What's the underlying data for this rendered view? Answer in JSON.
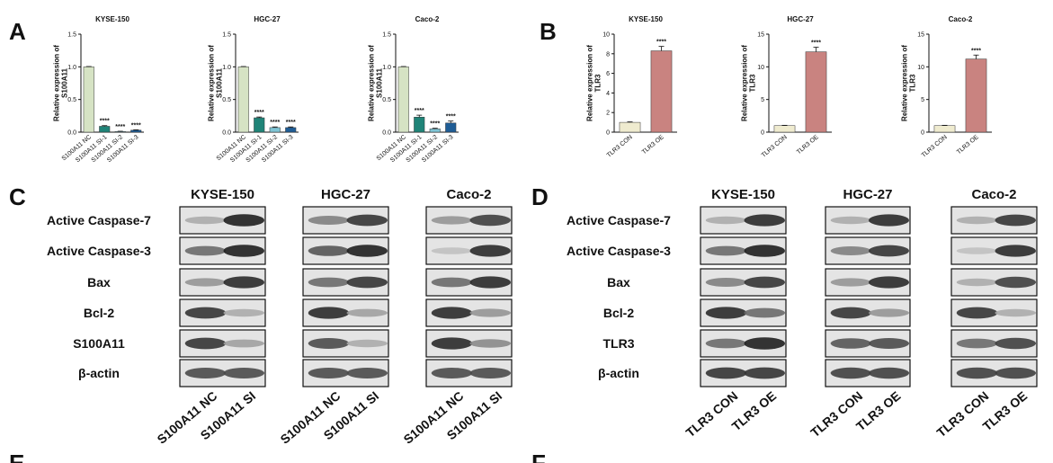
{
  "panels": {
    "A": "A",
    "B": "B",
    "C": "C",
    "D": "D",
    "E": "E",
    "F": "F"
  },
  "colors": {
    "NC": "#d6e3c4",
    "SI1": "#1f8478",
    "SI2": "#7fc4d4",
    "SI3": "#1f5d96",
    "CON": "#efebcf",
    "OE": "#c98380"
  },
  "chart_data": [
    {
      "group": "A",
      "type": "bar",
      "title": "KYSE-150",
      "ylabel": "Relative expression of S100A11",
      "categories": [
        "S100A11 NC",
        "S100A11 SI-1",
        "S100A11 SI-2",
        "S100A11 SI-3"
      ],
      "values": [
        1.0,
        0.09,
        0.01,
        0.03
      ],
      "errors": [
        0.005,
        0.01,
        0.004,
        0.006
      ],
      "significance": [
        "",
        "****",
        "****",
        "****"
      ],
      "color_keys": [
        "NC",
        "SI1",
        "SI2",
        "SI3"
      ],
      "ylim": [
        0,
        1.5
      ],
      "yticks": [
        "0.0",
        "0.5",
        "1.0",
        "1.5"
      ]
    },
    {
      "group": "A",
      "type": "bar",
      "title": "HGC-27",
      "ylabel": "Relative expression of S100A11",
      "categories": [
        "S100A11 NC",
        "S100A11 SI-1",
        "S100A11 SI-2",
        "S100A11 SI-3"
      ],
      "values": [
        1.0,
        0.22,
        0.07,
        0.07
      ],
      "errors": [
        0.005,
        0.012,
        0.01,
        0.01
      ],
      "significance": [
        "",
        "****",
        "****",
        "****"
      ],
      "color_keys": [
        "NC",
        "SI1",
        "SI2",
        "SI3"
      ],
      "ylim": [
        0,
        1.5
      ],
      "yticks": [
        "0.0",
        "0.5",
        "1.0",
        "1.5"
      ]
    },
    {
      "group": "A",
      "type": "bar",
      "title": "Caco-2",
      "ylabel": "Relative expression of S100A11",
      "categories": [
        "S100A11 NC",
        "S100A11 SI-1",
        "S100A11 SI-2",
        "S100A11 SI-3"
      ],
      "values": [
        1.0,
        0.23,
        0.05,
        0.14
      ],
      "errors": [
        0.005,
        0.03,
        0.01,
        0.03
      ],
      "significance": [
        "",
        "****",
        "****",
        "****"
      ],
      "color_keys": [
        "NC",
        "SI1",
        "SI2",
        "SI3"
      ],
      "ylim": [
        0,
        1.5
      ],
      "yticks": [
        "0.0",
        "0.5",
        "1.0",
        "1.5"
      ]
    },
    {
      "group": "B",
      "type": "bar",
      "title": "KYSE-150",
      "ylabel": "Relative expression of TLR3",
      "categories": [
        "TLR3 CON",
        "TLR3 OE"
      ],
      "values": [
        1.0,
        8.3
      ],
      "errors": [
        0.05,
        0.45
      ],
      "significance": [
        "",
        "****"
      ],
      "color_keys": [
        "CON",
        "OE"
      ],
      "ylim": [
        0,
        10
      ],
      "yticks": [
        "0",
        "2",
        "4",
        "6",
        "8",
        "10"
      ]
    },
    {
      "group": "B",
      "type": "bar",
      "title": "HGC-27",
      "ylabel": "Relative expression of TLR3",
      "categories": [
        "TLR3 CON",
        "TLR3 OE"
      ],
      "values": [
        1.0,
        12.3
      ],
      "errors": [
        0.05,
        0.7
      ],
      "significance": [
        "",
        "****"
      ],
      "color_keys": [
        "CON",
        "OE"
      ],
      "ylim": [
        0,
        15
      ],
      "yticks": [
        "0",
        "5",
        "10",
        "15"
      ]
    },
    {
      "group": "B",
      "type": "bar",
      "title": "Caco-2",
      "ylabel": "Relative expression of TLR3",
      "categories": [
        "TLR3 CON",
        "TLR3 OE"
      ],
      "values": [
        1.0,
        11.2
      ],
      "errors": [
        0.05,
        0.6
      ],
      "significance": [
        "",
        "****"
      ],
      "color_keys": [
        "CON",
        "OE"
      ],
      "ylim": [
        0,
        15
      ],
      "yticks": [
        "0",
        "5",
        "10",
        "15"
      ]
    }
  ],
  "blots": {
    "C": {
      "cell_lines": [
        "KYSE-150",
        "HGC-27",
        "Caco-2"
      ],
      "rows": [
        "Active Caspase-7",
        "Active Caspase-3",
        "Bax",
        "Bcl-2",
        "S100A11",
        "β-actin"
      ],
      "lanes": [
        "S100A11 NC",
        "S100A11 SI"
      ],
      "intensity": [
        [
          [
            0.3,
            0.95
          ],
          [
            0.5,
            0.85
          ],
          [
            0.4,
            0.8
          ]
        ],
        [
          [
            0.6,
            0.95
          ],
          [
            0.7,
            0.95
          ],
          [
            0.2,
            0.9
          ]
        ],
        [
          [
            0.4,
            0.9
          ],
          [
            0.6,
            0.85
          ],
          [
            0.6,
            0.9
          ]
        ],
        [
          [
            0.85,
            0.3
          ],
          [
            0.9,
            0.35
          ],
          [
            0.9,
            0.4
          ]
        ],
        [
          [
            0.85,
            0.35
          ],
          [
            0.75,
            0.3
          ],
          [
            0.9,
            0.45
          ]
        ],
        [
          [
            0.75,
            0.75
          ],
          [
            0.75,
            0.75
          ],
          [
            0.75,
            0.75
          ]
        ]
      ]
    },
    "D": {
      "cell_lines": [
        "KYSE-150",
        "HGC-27",
        "Caco-2"
      ],
      "rows": [
        "Active Caspase-7",
        "Active Caspase-3",
        "Bax",
        "Bcl-2",
        "TLR3",
        "β-actin"
      ],
      "lanes": [
        "TLR3 CON",
        "TLR3 OE"
      ],
      "intensity": [
        [
          [
            0.3,
            0.9
          ],
          [
            0.3,
            0.9
          ],
          [
            0.3,
            0.85
          ]
        ],
        [
          [
            0.6,
            0.95
          ],
          [
            0.5,
            0.85
          ],
          [
            0.2,
            0.9
          ]
        ],
        [
          [
            0.5,
            0.85
          ],
          [
            0.4,
            0.9
          ],
          [
            0.3,
            0.8
          ]
        ],
        [
          [
            0.9,
            0.6
          ],
          [
            0.85,
            0.4
          ],
          [
            0.85,
            0.3
          ]
        ],
        [
          [
            0.6,
            0.95
          ],
          [
            0.7,
            0.75
          ],
          [
            0.6,
            0.8
          ]
        ],
        [
          [
            0.85,
            0.85
          ],
          [
            0.8,
            0.8
          ],
          [
            0.8,
            0.8
          ]
        ]
      ]
    }
  }
}
